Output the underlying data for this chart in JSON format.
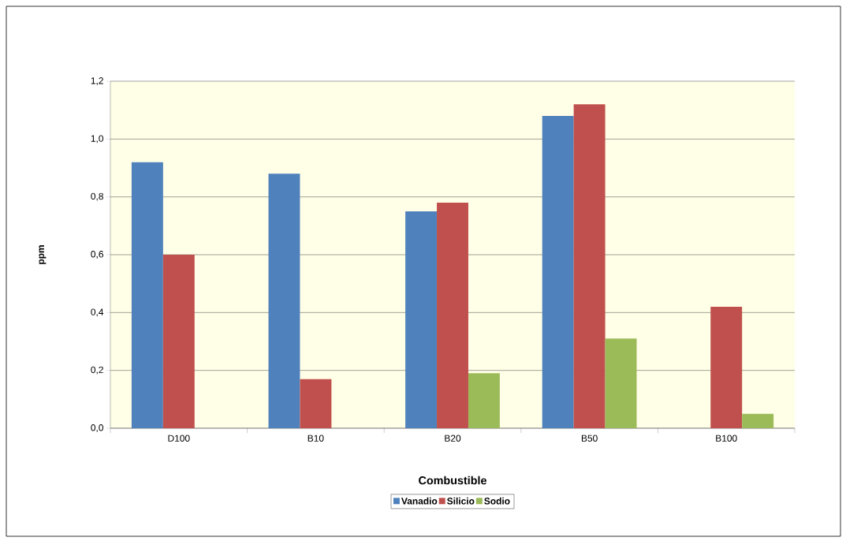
{
  "chart_data": {
    "type": "bar",
    "xlabel": "Combustible",
    "ylabel": "ppm",
    "categories": [
      "D100",
      "B10",
      "B20",
      "B50",
      "B100"
    ],
    "series": [
      {
        "name": "Vanadio",
        "color": "#4f81bd",
        "values": [
          0.92,
          0.88,
          0.75,
          1.08,
          0
        ]
      },
      {
        "name": "Silicio",
        "color": "#c0504d",
        "values": [
          0.6,
          0.17,
          0.78,
          1.12,
          0.42
        ]
      },
      {
        "name": "Sodio",
        "color": "#9bbb59",
        "values": [
          0,
          0,
          0.19,
          0.31,
          0.05
        ]
      }
    ],
    "ylim": [
      0,
      1.2
    ],
    "yticks": [
      {
        "value": 0,
        "label": "0,0"
      },
      {
        "value": 0.2,
        "label": "0,2"
      },
      {
        "value": 0.4,
        "label": "0,4"
      },
      {
        "value": 0.6,
        "label": "0,6"
      },
      {
        "value": 0.8,
        "label": "0,8"
      },
      {
        "value": 1.0,
        "label": "1,0"
      },
      {
        "value": 1.2,
        "label": "1,2"
      }
    ],
    "grid": "y",
    "legend": "bottom"
  }
}
